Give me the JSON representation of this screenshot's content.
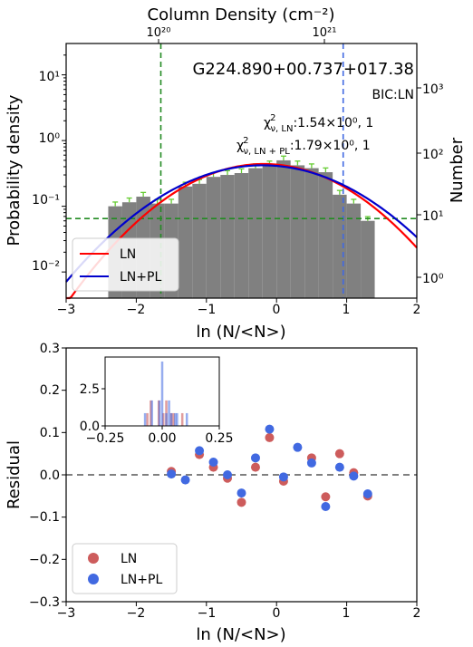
{
  "chart_data": [
    {
      "type": "bar",
      "title": "G224.890+00.737+017.38",
      "top_axis_label": "Column Density (cm⁻²)",
      "top_ticks": [
        "10²⁰",
        "10²¹"
      ],
      "xlabel": "ln (N/<N>)",
      "ylabel": "Probability density",
      "ylabel_right": "Number",
      "xlim": [
        -3,
        2
      ],
      "ylim": [
        0.004,
        30
      ],
      "yscale": "log",
      "x_ticks": [
        "−3",
        "−2",
        "−1",
        "0",
        "1",
        "2"
      ],
      "y_ticks": [
        "10⁻²",
        "10⁻¹",
        "10⁰",
        "10¹"
      ],
      "y_right_ticks": [
        "10⁰",
        "10¹",
        "10²",
        "10³"
      ],
      "annotations": {
        "bic": "BIC:LN",
        "chi_ln_sym": "χ",
        "chi_ln_sub": "ν, LN",
        "chi_ln_val": ":1.54×10⁰, 1",
        "chi_pl_sym": "χ",
        "chi_pl_sub": "ν, LN + PL",
        "chi_pl_val": ":1.79×10⁰, 1"
      },
      "histogram": {
        "bin_width": 0.2,
        "bin_centers": [
          -2.3,
          -2.1,
          -1.9,
          -1.7,
          -1.5,
          -1.3,
          -1.1,
          -0.9,
          -0.7,
          -0.5,
          -0.3,
          -0.1,
          0.1,
          0.3,
          0.5,
          0.7,
          0.9,
          1.1,
          1.3
        ],
        "values": [
          0.1,
          0.115,
          0.14,
          0.11,
          0.11,
          0.2,
          0.22,
          0.28,
          0.3,
          0.32,
          0.38,
          0.42,
          0.5,
          0.42,
          0.38,
          0.33,
          0.15,
          0.11,
          0.06
        ],
        "color": "#808080",
        "error_color": "#66cc33"
      },
      "series": [
        {
          "name": "LN",
          "color": "#ff0000",
          "mu": -0.18,
          "sigma": 0.9,
          "peak": 0.44
        },
        {
          "name": "LN+PL",
          "color": "#0000cc",
          "mu": -0.2,
          "sigma": 0.98,
          "peak": 0.42
        }
      ],
      "reference_lines": {
        "vertical_green_x": -1.65,
        "vertical_blue_x": 0.95,
        "horizontal_green_y": 0.065
      },
      "legend_position": "lower-left"
    },
    {
      "type": "scatter",
      "xlabel": "ln (N/<N>)",
      "ylabel": "Residual",
      "xlim": [
        -3,
        2
      ],
      "ylim": [
        -0.3,
        0.3
      ],
      "x_ticks": [
        "−3",
        "−2",
        "−1",
        "0",
        "1",
        "2"
      ],
      "y_ticks": [
        "−0.3",
        "−0.2",
        "−0.1",
        "0.0",
        "0.1",
        "0.2",
        "0.3"
      ],
      "legend_position": "lower-left",
      "series": [
        {
          "name": "LN",
          "color": "#cd5c5c",
          "x": [
            -1.5,
            -1.1,
            -0.9,
            -0.7,
            -0.5,
            -0.3,
            -0.1,
            0.1,
            0.5,
            0.7,
            0.9,
            1.1,
            1.3
          ],
          "y": [
            0.008,
            0.048,
            0.018,
            -0.008,
            -0.065,
            0.018,
            0.088,
            -0.015,
            0.04,
            -0.052,
            0.05,
            0.005,
            -0.05
          ]
        },
        {
          "name": "LN+PL",
          "color": "#4169e1",
          "x": [
            -1.5,
            -1.3,
            -1.1,
            -0.9,
            -0.7,
            -0.5,
            -0.3,
            -0.1,
            0.1,
            0.3,
            0.5,
            0.7,
            0.9,
            1.1,
            1.3
          ],
          "y": [
            0.002,
            -0.012,
            0.057,
            0.03,
            0.0,
            -0.043,
            0.04,
            0.108,
            -0.005,
            0.065,
            0.028,
            -0.075,
            0.018,
            -0.003,
            -0.045
          ]
        }
      ],
      "inset": {
        "x_ticks": [
          "−0.25",
          "0.00",
          "0.25"
        ],
        "y_ticks": [
          "0.0",
          "2.5"
        ],
        "xlim": [
          -0.25,
          0.25
        ],
        "ylim": [
          0,
          4.6
        ],
        "bin_width": 0.01,
        "ln_bins": [
          {
            "x": -0.065,
            "h": 0.85
          },
          {
            "x": -0.05,
            "h": 1.7
          },
          {
            "x": -0.015,
            "h": 1.7
          },
          {
            "x": 0.005,
            "h": 0.85
          },
          {
            "x": 0.018,
            "h": 1.7
          },
          {
            "x": 0.04,
            "h": 0.85
          },
          {
            "x": 0.05,
            "h": 0.85
          },
          {
            "x": 0.088,
            "h": 0.85
          }
        ],
        "pl_bins": [
          {
            "x": -0.075,
            "h": 0.85
          },
          {
            "x": -0.045,
            "h": 1.7
          },
          {
            "x": -0.012,
            "h": 1.7
          },
          {
            "x": 0.0,
            "h": 4.3
          },
          {
            "x": 0.018,
            "h": 0.85
          },
          {
            "x": 0.03,
            "h": 1.7
          },
          {
            "x": 0.04,
            "h": 0.85
          },
          {
            "x": 0.057,
            "h": 0.85
          },
          {
            "x": 0.065,
            "h": 0.85
          },
          {
            "x": 0.108,
            "h": 0.85
          }
        ]
      }
    }
  ]
}
